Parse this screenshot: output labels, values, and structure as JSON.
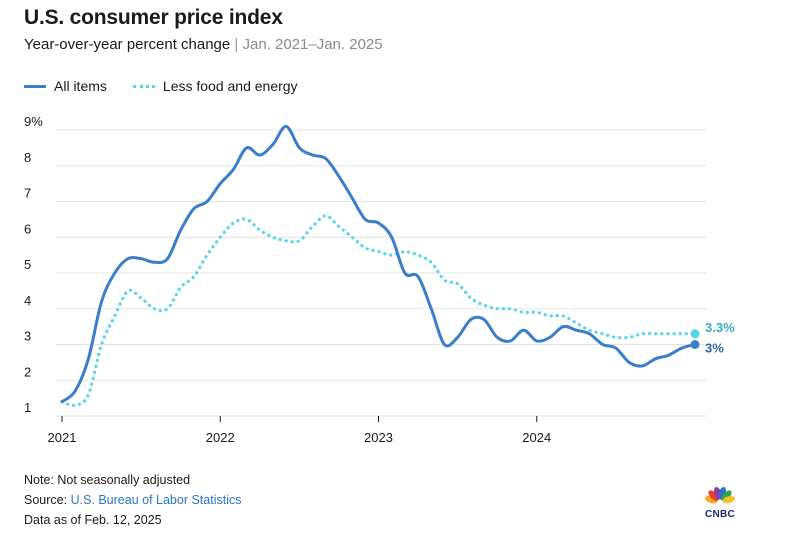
{
  "header": {
    "title": "U.S. consumer price index",
    "subtitle_main": "Year-over-year percent change",
    "subtitle_sep": " | ",
    "subtitle_range": "Jan. 2021–Jan. 2025"
  },
  "legend": {
    "all_items": "All items",
    "core": "Less food and energy"
  },
  "chart_data": {
    "type": "line",
    "x_start": "2021-01",
    "x_end": "2025-01",
    "x_ticks": [
      {
        "date": "2021-01",
        "label": "2021"
      },
      {
        "date": "2022-01",
        "label": "2022"
      },
      {
        "date": "2023-01",
        "label": "2023"
      },
      {
        "date": "2024-01",
        "label": "2024"
      }
    ],
    "y_ticks": [
      {
        "value": 1,
        "label": "1"
      },
      {
        "value": 2,
        "label": "2"
      },
      {
        "value": 3,
        "label": "3"
      },
      {
        "value": 4,
        "label": "4"
      },
      {
        "value": 5,
        "label": "5"
      },
      {
        "value": 6,
        "label": "6"
      },
      {
        "value": 7,
        "label": "7"
      },
      {
        "value": 8,
        "label": "8"
      },
      {
        "value": 9,
        "label": "9%"
      }
    ],
    "ylim": [
      1,
      9
    ],
    "grid": "horizontal",
    "months": [
      "2021-01",
      "2021-02",
      "2021-03",
      "2021-04",
      "2021-05",
      "2021-06",
      "2021-07",
      "2021-08",
      "2021-09",
      "2021-10",
      "2021-11",
      "2021-12",
      "2022-01",
      "2022-02",
      "2022-03",
      "2022-04",
      "2022-05",
      "2022-06",
      "2022-07",
      "2022-08",
      "2022-09",
      "2022-10",
      "2022-11",
      "2022-12",
      "2023-01",
      "2023-02",
      "2023-03",
      "2023-04",
      "2023-05",
      "2023-06",
      "2023-07",
      "2023-08",
      "2023-09",
      "2023-10",
      "2023-11",
      "2023-12",
      "2024-01",
      "2024-02",
      "2024-03",
      "2024-04",
      "2024-05",
      "2024-06",
      "2024-07",
      "2024-08",
      "2024-09",
      "2024-10",
      "2024-11",
      "2024-12",
      "2025-01"
    ],
    "series": [
      {
        "name": "All items",
        "color": "#3a7dc9",
        "style": "solid",
        "values": [
          1.4,
          1.7,
          2.6,
          4.2,
          5.0,
          5.4,
          5.4,
          5.3,
          5.4,
          6.2,
          6.8,
          7.0,
          7.5,
          7.9,
          8.5,
          8.3,
          8.6,
          9.1,
          8.5,
          8.3,
          8.2,
          7.7,
          7.1,
          6.5,
          6.4,
          6.0,
          5.0,
          4.9,
          4.0,
          3.0,
          3.2,
          3.7,
          3.7,
          3.2,
          3.1,
          3.4,
          3.1,
          3.2,
          3.5,
          3.4,
          3.3,
          3.0,
          2.9,
          2.5,
          2.4,
          2.6,
          2.7,
          2.9,
          3.0
        ],
        "end_label": "3%"
      },
      {
        "name": "Less food and energy",
        "color": "#55d6e6",
        "style": "dotted",
        "values": [
          1.4,
          1.3,
          1.6,
          3.0,
          3.8,
          4.5,
          4.3,
          4.0,
          4.0,
          4.6,
          4.9,
          5.5,
          6.0,
          6.4,
          6.5,
          6.2,
          6.0,
          5.9,
          5.9,
          6.3,
          6.6,
          6.3,
          6.0,
          5.7,
          5.6,
          5.5,
          5.6,
          5.5,
          5.3,
          4.8,
          4.7,
          4.3,
          4.1,
          4.0,
          4.0,
          3.9,
          3.9,
          3.8,
          3.8,
          3.6,
          3.4,
          3.3,
          3.2,
          3.2,
          3.3,
          3.3,
          3.3,
          3.3,
          3.3
        ],
        "end_label": "3.3%"
      }
    ]
  },
  "footer": {
    "note": "Note: Not seasonally adjusted",
    "source_prefix": "Source: ",
    "source_name": "U.S. Bureau of Labor Statistics",
    "data_as_of": "Data as of Feb. 12, 2025"
  },
  "logo": {
    "text": "CNBC",
    "colors": [
      "#f5a623",
      "#e8402a",
      "#8e3fa6",
      "#2f6fc2",
      "#2fa44f",
      "#f2c12e"
    ]
  }
}
